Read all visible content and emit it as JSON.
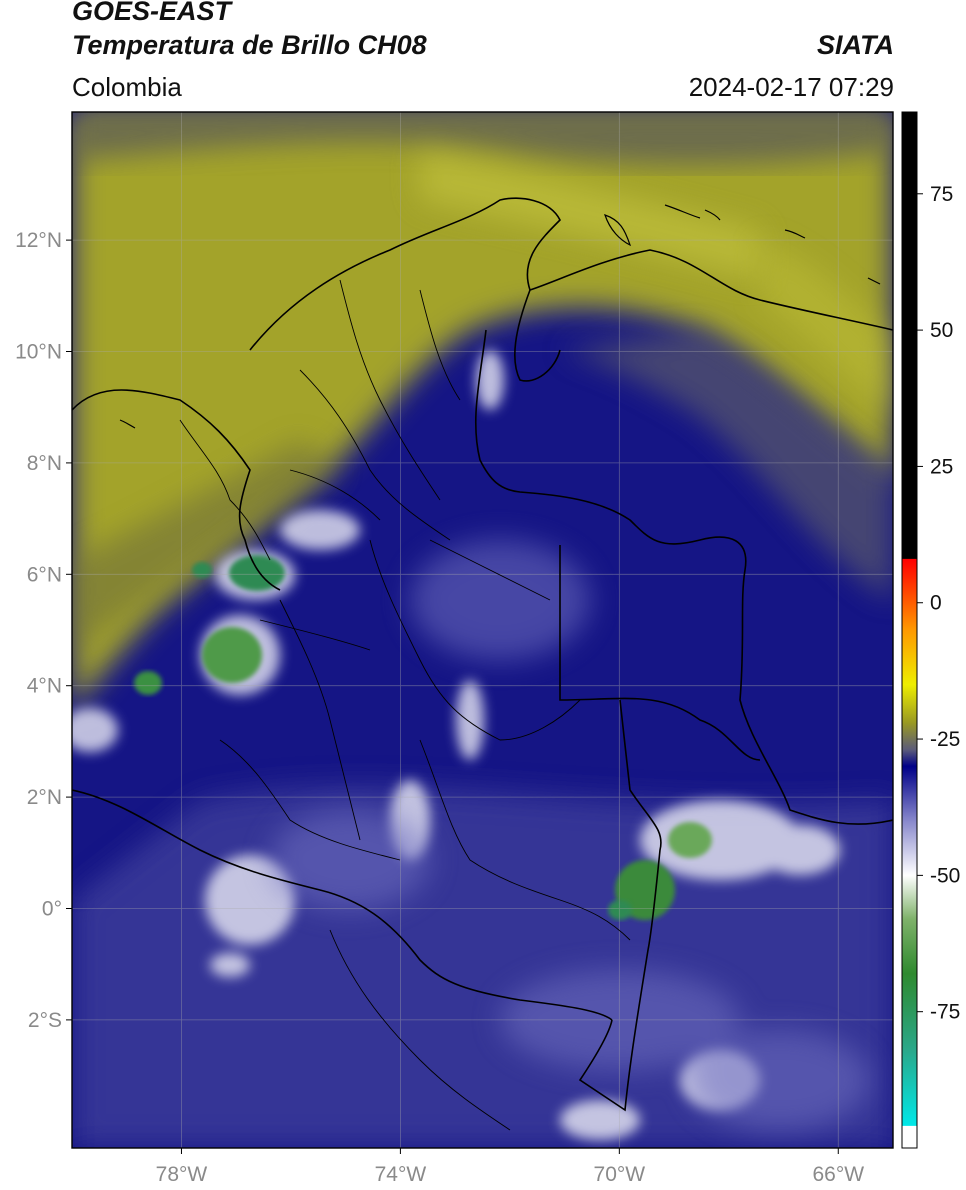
{
  "header": {
    "satellite": "GOES-EAST",
    "product": "Temperatura de Brillo CH08",
    "organization": "SIATA",
    "region": "Colombia",
    "timestamp": "2024-02-17 07:29"
  },
  "axes": {
    "lat_labels": [
      "12°N",
      "10°N",
      "8°N",
      "6°N",
      "4°N",
      "2°N",
      "0°",
      "2°S"
    ],
    "lat_values": [
      12,
      10,
      8,
      6,
      4,
      2,
      0,
      -2
    ],
    "lon_labels": [
      "78°W",
      "74°W",
      "70°W",
      "66°W"
    ],
    "lon_values": [
      -78,
      -74,
      -70,
      -66
    ],
    "lon_range": [
      -80,
      -65
    ],
    "lat_range": [
      -4.3,
      14.3
    ],
    "grid": true
  },
  "colorbar": {
    "labels": [
      "75",
      "50",
      "25",
      "0",
      "-25",
      "-50",
      "-75"
    ],
    "values": [
      75,
      50,
      25,
      0,
      -25,
      -50,
      -75
    ],
    "range": [
      -100,
      90
    ],
    "stops": [
      {
        "v": -100,
        "c": "#ffffff"
      },
      {
        "v": -96,
        "c": "#ffffff"
      },
      {
        "v": -95.9,
        "c": "#00e8e8"
      },
      {
        "v": -82,
        "c": "#2aa88a"
      },
      {
        "v": -68,
        "c": "#2f8a2f"
      },
      {
        "v": -58,
        "c": "#7fb26a"
      },
      {
        "v": -50,
        "c": "#ffffff"
      },
      {
        "v": -40,
        "c": "#8888cc"
      },
      {
        "v": -30,
        "c": "#000088"
      },
      {
        "v": -27,
        "c": "#5a5a7a"
      },
      {
        "v": -22,
        "c": "#999922"
      },
      {
        "v": -15,
        "c": "#eeee00"
      },
      {
        "v": -5,
        "c": "#ff9900"
      },
      {
        "v": 5,
        "c": "#ff2200"
      },
      {
        "v": 8,
        "c": "#ff0000"
      },
      {
        "v": 8.1,
        "c": "#000000"
      },
      {
        "v": 90,
        "c": "#000000"
      }
    ]
  },
  "colors": {
    "cold_cloud": "#2e7d32",
    "deep_blue": "#10107a",
    "dry_yellow": "#a8a828",
    "border": "#000000"
  }
}
